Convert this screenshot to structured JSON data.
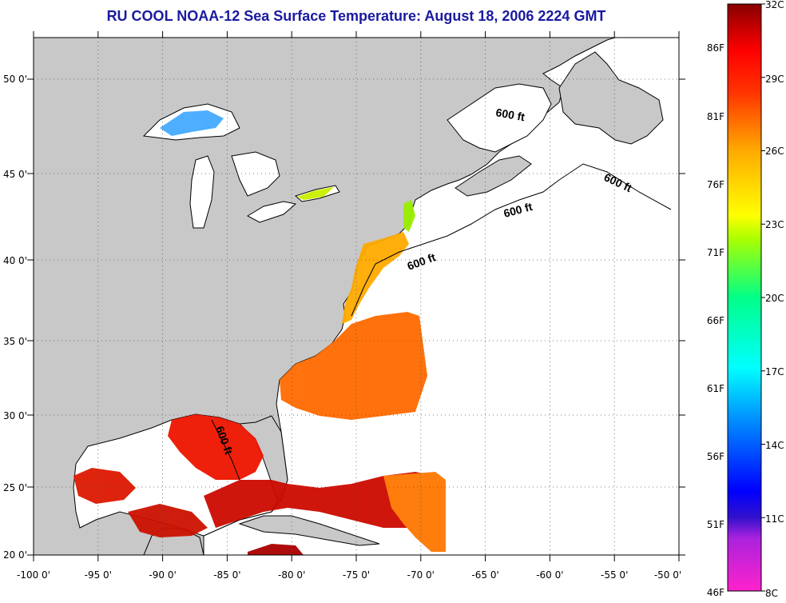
{
  "title": "RU COOL  NOAA-12  Sea Surface Temperature:  August 18, 2006 2224 GMT",
  "map": {
    "lon_labels": [
      "-100 0'",
      "-95 0'",
      "-90 0'",
      "-85 0'",
      "-80 0'",
      "-75 0'",
      "-70 0'",
      "-65 0'",
      "-60 0'",
      "-55 0'",
      "-50 0'"
    ],
    "lat_labels": [
      "50 0'",
      "45 0'",
      "40 0'",
      "35 0'",
      "30 0'",
      "25 0'",
      "20 0'"
    ],
    "lon_range": [
      -100,
      -50
    ],
    "lat_range": [
      20,
      52.5
    ],
    "grid": "dotted",
    "contour_label": "600 ft",
    "land_color": "#c8c8c8",
    "water_nodata_color": "#ffffff"
  },
  "colorbar": {
    "celsius_labels": [
      "32C",
      "29C",
      "26C",
      "23C",
      "20C",
      "17C",
      "14C",
      "11C",
      "8C"
    ],
    "fahrenheit_labels": [
      "86F",
      "81F",
      "76F",
      "71F",
      "66F",
      "61F",
      "56F",
      "51F",
      "46F"
    ],
    "range_c": [
      8,
      32
    ],
    "colors": [
      "#ff22cc",
      "#8822dd",
      "#0000ff",
      "#0088ff",
      "#00ffff",
      "#00ff88",
      "#aaff00",
      "#ffff00",
      "#ff9900",
      "#ff3300",
      "#ff0000",
      "#880000"
    ]
  }
}
